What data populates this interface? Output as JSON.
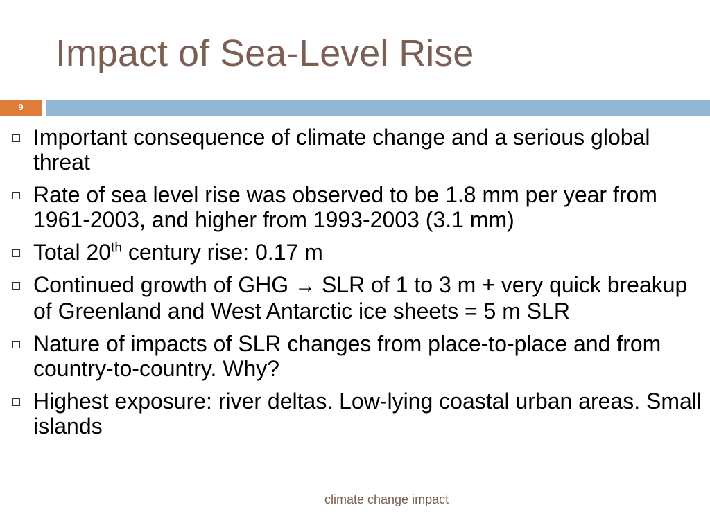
{
  "slide": {
    "title": "Impact of Sea-Level Rise",
    "number": "9",
    "footer": "climate change impact"
  },
  "bullets": [
    {
      "text": "Important consequence of climate change and a serious global threat"
    },
    {
      "text": "Rate of sea level rise was observed to be 1.8 mm per year from 1961-2003, and higher from 1993-2003 (3.1 mm)"
    },
    {
      "pre": "Total 20",
      "sup": "th",
      "post": " century rise: 0.17 m"
    },
    {
      "pre": "Continued growth of GHG ",
      "arrow": "→",
      "post": " SLR of 1 to 3 m + very quick breakup of Greenland and West Antarctic ice sheets = 5 m SLR"
    },
    {
      "text": "Nature of impacts of SLR changes from place-to-place and from country-to-country. Why?"
    },
    {
      "text": "Highest exposure: river deltas. Low-lying coastal urban areas. Small islands"
    }
  ],
  "colors": {
    "title": "#7a5f52",
    "slide_number_bg": "#dd7d39",
    "header_bar": "#93b6d3"
  },
  "icons": {
    "bullet": "hollow-square-bullet-icon",
    "arrow": "right-arrow-icon"
  }
}
